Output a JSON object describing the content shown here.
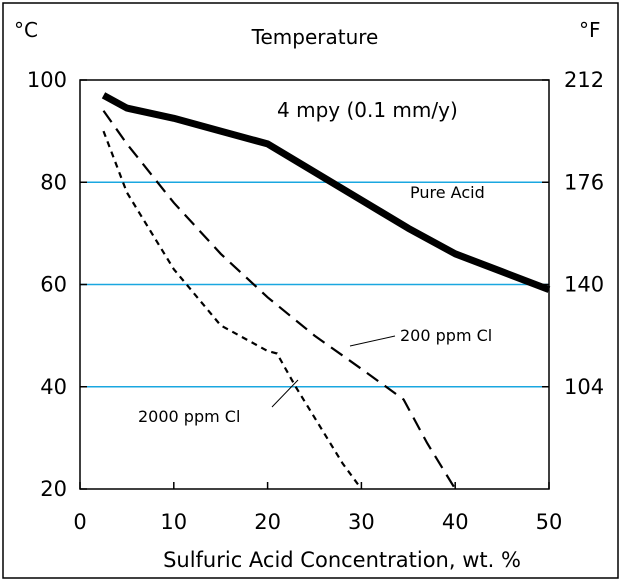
{
  "chart_data": {
    "type": "line",
    "title": "Temperature",
    "left_unit": "°C",
    "right_unit": "°F",
    "xlabel": "Sulfuric Acid Concentration, wt. %",
    "xlim": [
      0,
      50
    ],
    "ylim": [
      20,
      100
    ],
    "x_ticks": [
      "0",
      "10",
      "20",
      "30",
      "40",
      "50"
    ],
    "y_ticks_left": [
      "20",
      "40",
      "60",
      "80",
      "100"
    ],
    "y_ticks_right": [
      {
        "label": "104",
        "at_c": 40
      },
      {
        "label": "140",
        "at_c": 60
      },
      {
        "label": "176",
        "at_c": 80
      },
      {
        "label": "212",
        "at_c": 100
      }
    ],
    "gridlines_c": [
      40,
      60,
      80
    ],
    "grid_color": "#1aa7e0",
    "annotation": "4 mpy (0.1 mm/y)",
    "series": [
      {
        "name": "Pure Acid",
        "style": "solid-thick",
        "x": [
          2.5,
          5,
          10,
          15,
          20,
          25,
          30,
          35,
          40,
          45,
          50
        ],
        "y": [
          97,
          94.5,
          92.5,
          90,
          87.5,
          82,
          76.5,
          71,
          66,
          62.5,
          59
        ]
      },
      {
        "name": "200 ppm Cl",
        "style": "dashed",
        "x": [
          2.5,
          5,
          10,
          15,
          20,
          25,
          30,
          34.5,
          37,
          40
        ],
        "y": [
          94,
          87.5,
          76,
          66,
          57.5,
          50,
          43.5,
          37.5,
          29,
          20
        ]
      },
      {
        "name": "2000 ppm Cl",
        "style": "dotted-dashed",
        "x": [
          2.5,
          5,
          10,
          15,
          20,
          21,
          23,
          26,
          28,
          30
        ],
        "y": [
          90,
          78,
          63,
          52,
          47,
          46.5,
          40,
          31,
          25,
          20
        ]
      }
    ]
  }
}
